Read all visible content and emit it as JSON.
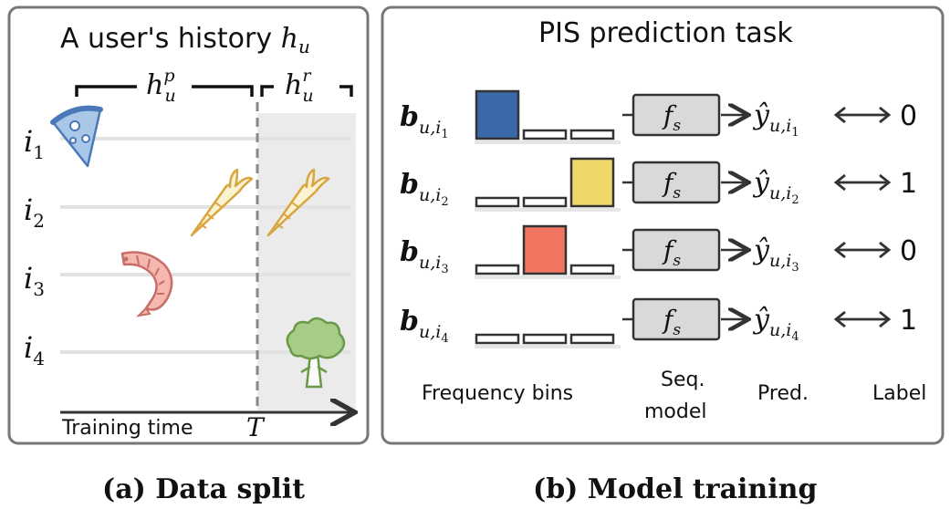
{
  "panel_a": {
    "title_text": "A user's history ",
    "title_symbol": "h",
    "title_sub": "u",
    "prior_symbol": "h",
    "prior_sub": "u",
    "prior_sup": "p",
    "recent_symbol": "h",
    "recent_sub": "u",
    "recent_sup": "r",
    "rows": [
      {
        "symbol": "i",
        "sub": "1",
        "icon": "pizza-icon"
      },
      {
        "symbol": "i",
        "sub": "2",
        "icon": "carrot-icon"
      },
      {
        "symbol": "i",
        "sub": "3",
        "icon": "shrimp-icon"
      },
      {
        "symbol": "i",
        "sub": "4",
        "icon": "broccoli-icon"
      }
    ],
    "axis_label": "Training time",
    "split_label": "T",
    "caption": "(a) Data split"
  },
  "panel_b": {
    "title": "PIS prediction task",
    "rows": [
      {
        "b_symbol": "b",
        "b_sub": "u,i",
        "b_subsub": "1",
        "model": "f",
        "model_sub": "s",
        "pred_symbol": "ŷ",
        "pred_sub": "u,i",
        "pred_subsub": "1",
        "label": "0",
        "active_bin": 0,
        "color": "#3a68a8"
      },
      {
        "b_symbol": "b",
        "b_sub": "u,i",
        "b_subsub": "2",
        "model": "f",
        "model_sub": "s",
        "pred_symbol": "ŷ",
        "pred_sub": "u,i",
        "pred_subsub": "2",
        "label": "1",
        "active_bin": 2,
        "color": "#f0d868"
      },
      {
        "b_symbol": "b",
        "b_sub": "u,i",
        "b_subsub": "3",
        "model": "f",
        "model_sub": "s",
        "pred_symbol": "ŷ",
        "pred_sub": "u,i",
        "pred_subsub": "3",
        "label": "0",
        "active_bin": 1,
        "color": "#f07460"
      },
      {
        "b_symbol": "b",
        "b_sub": "u,i",
        "b_subsub": "4",
        "model": "f",
        "model_sub": "s",
        "pred_symbol": "ŷ",
        "pred_sub": "u,i",
        "pred_subsub": "4",
        "label": "1",
        "active_bin": -1,
        "color": "#ffffff"
      }
    ],
    "footer": {
      "bins": "Frequency bins",
      "seq_line1": "Seq.",
      "seq_line2": "model",
      "pred": "Pred.",
      "label": "Label"
    },
    "caption": "(b) Model training"
  }
}
